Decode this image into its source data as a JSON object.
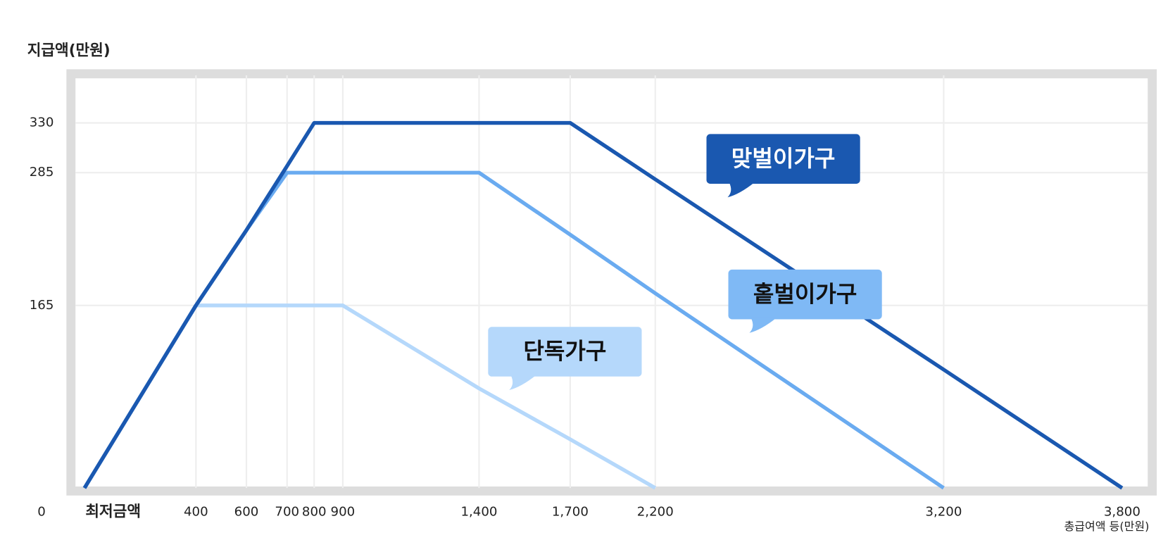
{
  "chart_data": {
    "type": "line",
    "y_label": "지급액(만원)",
    "x_label": "총급여액 등(만원)",
    "categories": [
      "최저금액",
      "400",
      "600",
      "700",
      "800",
      "900",
      "1,400",
      "1,700",
      "2,200",
      "3,200",
      "3,800"
    ],
    "ylim": [
      0,
      373
    ],
    "yticks": [
      0,
      165,
      285,
      330
    ],
    "grid": true,
    "series": [
      {
        "name": "맞벌이가구",
        "color": "#1a58b0",
        "values": [
          0,
          165,
          233,
          291,
          330,
          330,
          330,
          330,
          279,
          107,
          0
        ]
      },
      {
        "name": "홑벌이가구",
        "color": "#6aabf0",
        "values": [
          0,
          165,
          233,
          285,
          285,
          285,
          285,
          229,
          176,
          0,
          null
        ]
      },
      {
        "name": "단독가구",
        "color": "#b5d8fb",
        "values": [
          0,
          165,
          165,
          165,
          165,
          165,
          90,
          44,
          0,
          null,
          null
        ]
      }
    ]
  }
}
